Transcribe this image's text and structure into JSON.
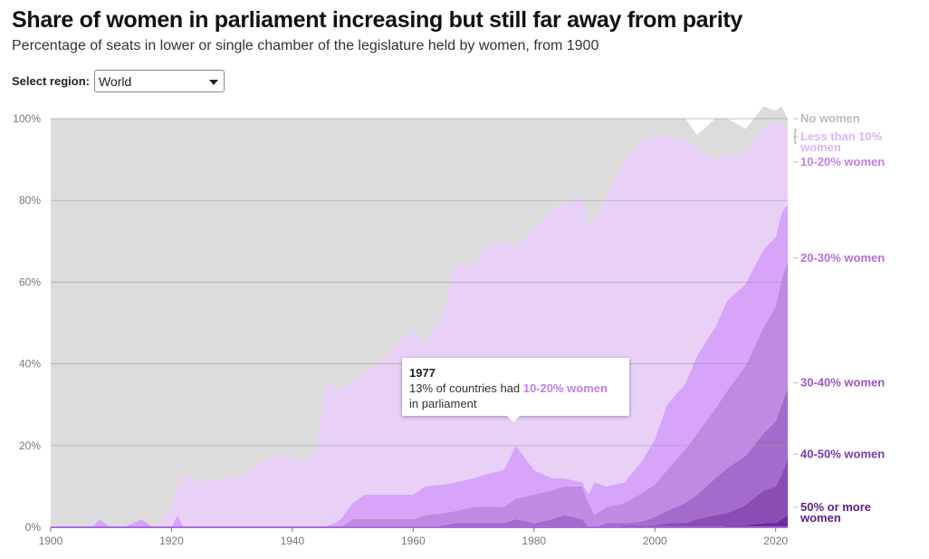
{
  "header": {
    "title": "Share of women in parliament increasing but still far away from parity",
    "subtitle": "Percentage of seats in lower or single chamber of the legislature held by women, from 1900"
  },
  "controls": {
    "region_label": "Select region:",
    "region_value": "World"
  },
  "tooltip": {
    "year": "1977",
    "prefix": "13% of countries had ",
    "highlight": "10-20% women",
    "suffix": "in parliament"
  },
  "colors": {
    "background_area": "#dcdcdc",
    "lt10": "#e8d0f7",
    "p10_20": "#d7a4f9",
    "p20_30": "#c08ae3",
    "p30_40": "#a46bcc",
    "p40_50": "#8a4db3",
    "p50plus": "#6e2a96",
    "label_no": "#bbbbbb",
    "label_lt10": "#ddb4f6",
    "label_10_20": "#c17ee8",
    "label_20_30": "#b36fd9",
    "label_30_40": "#9a55c6",
    "label_40_50": "#7a3aa8",
    "label_50": "#5e1f86"
  },
  "chart_data": {
    "type": "area",
    "stacked": true,
    "xlim": [
      1900,
      2022
    ],
    "ylim": [
      0,
      100
    ],
    "x_ticks": [
      "1900",
      "1920",
      "1940",
      "1960",
      "1980",
      "2000",
      "2020"
    ],
    "y_ticks": [
      "0%",
      "20%",
      "40%",
      "60%",
      "80%",
      "100%"
    ],
    "grid": true,
    "legend_placement": "right",
    "x": [
      1900,
      1905,
      1906,
      1907,
      1908,
      1910,
      1912,
      1915,
      1917,
      1918,
      1920,
      1921,
      1922,
      1925,
      1928,
      1930,
      1932,
      1935,
      1938,
      1940,
      1942,
      1944,
      1945,
      1946,
      1947,
      1948,
      1950,
      1952,
      1955,
      1958,
      1960,
      1962,
      1965,
      1967,
      1970,
      1972,
      1975,
      1977,
      1980,
      1983,
      1985,
      1988,
      1989,
      1990,
      1992,
      1995,
      1998,
      2000,
      2002,
      2005,
      2007,
      2010,
      2012,
      2015,
      2018,
      2020,
      2021,
      2022
    ],
    "series": [
      {
        "name": "50% or more women",
        "key": "p50plus",
        "values": [
          0,
          0,
          0,
          0,
          0,
          0,
          0,
          0,
          0,
          0,
          0,
          0,
          0,
          0,
          0,
          0,
          0,
          0,
          0,
          0,
          0,
          0,
          0,
          0,
          0,
          0,
          0,
          0,
          0,
          0,
          0,
          0,
          0,
          0,
          0,
          0,
          0,
          0,
          0,
          0,
          0,
          0,
          0,
          0,
          0,
          0,
          0,
          0,
          0,
          0,
          0,
          0,
          0.5,
          0.5,
          1,
          1,
          2,
          3
        ]
      },
      {
        "name": "40-50% women",
        "key": "p40_50",
        "values": [
          0,
          0,
          0,
          0,
          0,
          0,
          0,
          0,
          0,
          0,
          0,
          0,
          0,
          0,
          0,
          0,
          0,
          0,
          0,
          0,
          0,
          0,
          0,
          0,
          0,
          0,
          0,
          0,
          0,
          0,
          0,
          0,
          0,
          0,
          0,
          0,
          0,
          0,
          0,
          0,
          0,
          0,
          0,
          0,
          0,
          0.5,
          0.5,
          0.5,
          1,
          1,
          2,
          3,
          3,
          5,
          8,
          9,
          11,
          14
        ]
      },
      {
        "name": "30-40% women",
        "key": "p30_40",
        "values": [
          0,
          0,
          0,
          0,
          0,
          0,
          0,
          0,
          0,
          0,
          0,
          0,
          0,
          0,
          0,
          0,
          0,
          0,
          0,
          0,
          0,
          0,
          0,
          0,
          0,
          0,
          0,
          0,
          0,
          0,
          0,
          0,
          0.5,
          1,
          1,
          1,
          1,
          2,
          1,
          2,
          3,
          2,
          0,
          0,
          1,
          0.5,
          1,
          2,
          3,
          5,
          6,
          9,
          11,
          12,
          14,
          16,
          17,
          17
        ]
      },
      {
        "name": "20-30% women",
        "key": "p20_30",
        "values": [
          0,
          0,
          0,
          0,
          0,
          0,
          0,
          0,
          0,
          0,
          0,
          0,
          0,
          0,
          0,
          0,
          0,
          0,
          0,
          0,
          0,
          0,
          0,
          0,
          0,
          0,
          2,
          2,
          2,
          2,
          2,
          3,
          3,
          3,
          4,
          4,
          4,
          5,
          7,
          7,
          7,
          8,
          6,
          3,
          4,
          5,
          7,
          8,
          10,
          13,
          15,
          17,
          19,
          22,
          26,
          28,
          31,
          31
        ]
      },
      {
        "name": "10-20% women",
        "key": "p10_20",
        "values": [
          0,
          0,
          0,
          0,
          0,
          0,
          0,
          0,
          0,
          0,
          0,
          0,
          0,
          0,
          0,
          0,
          0,
          0,
          0,
          0,
          0,
          0,
          0,
          0.5,
          1,
          2,
          4,
          6,
          6,
          6,
          6,
          7,
          7,
          7,
          7,
          8,
          9,
          13,
          6,
          3,
          2,
          1,
          2,
          8,
          5,
          5,
          8,
          11,
          16,
          16,
          19,
          20,
          22,
          20,
          19,
          17,
          16,
          14
        ]
      },
      {
        "name": "Less than 10% women",
        "key": "lt10",
        "values": [
          0,
          0,
          0,
          0,
          2,
          0,
          0,
          2,
          0,
          0,
          0,
          3,
          0,
          0,
          0,
          0,
          0,
          0,
          0,
          0,
          0,
          0,
          0,
          0,
          0,
          0,
          0,
          0,
          0,
          0,
          0,
          0,
          0,
          0,
          0,
          0,
          0,
          0,
          0,
          0,
          0,
          0,
          0,
          0,
          0,
          0,
          0,
          0,
          0,
          0,
          0,
          0,
          0,
          0,
          0,
          0,
          0,
          0
        ]
      },
      {
        "name": "Less than 10% women",
        "key": "lt10b",
        "values": [
          0,
          0,
          0,
          1,
          0,
          0,
          0,
          0,
          0,
          1,
          5,
          7,
          13,
          11,
          12,
          12,
          13,
          16,
          18,
          17,
          16,
          19,
          30,
          36,
          33,
          32,
          30,
          30,
          33,
          38,
          40,
          35,
          42,
          54,
          52,
          56,
          56,
          49,
          59,
          66,
          67,
          70,
          66,
          64,
          71,
          79,
          78,
          74,
          66,
          60,
          51,
          41,
          36,
          32,
          30,
          28,
          22,
          19
        ]
      },
      {
        "name": "No women",
        "key": "no",
        "values": [
          100,
          100,
          100,
          99,
          98,
          100,
          100,
          98,
          100,
          99,
          95,
          90,
          87,
          89,
          88,
          88,
          87,
          84,
          82,
          83,
          84,
          81,
          70,
          63.5,
          66,
          66,
          64,
          62,
          59,
          54,
          52,
          55,
          47.5,
          35,
          36,
          31,
          30,
          31,
          27,
          22,
          21,
          19,
          26,
          25,
          19,
          10,
          5.5,
          4.5,
          4,
          5,
          3,
          10,
          8.5,
          6,
          5,
          3,
          4,
          2
        ]
      }
    ],
    "legend": [
      {
        "label": "No women",
        "key": "label_no",
        "y": 100
      },
      {
        "label": "Less than 10%",
        "label2": "women",
        "key": "label_lt10",
        "y": 97
      },
      {
        "label": "10-20% women",
        "key": "label_10_20",
        "y": 88.5
      },
      {
        "label": "20-30% women",
        "key": "label_20_30",
        "y": 65
      },
      {
        "label": "30-40% women",
        "key": "label_30_40",
        "y": 34.5
      },
      {
        "label": "40-50% women",
        "key": "label_40_50",
        "y": 17
      },
      {
        "label": "50% or more",
        "label2": "women",
        "key": "label_50",
        "y": 3
      }
    ]
  }
}
